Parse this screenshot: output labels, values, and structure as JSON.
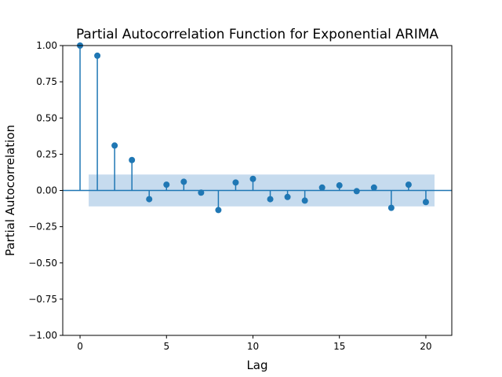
{
  "chart_data": {
    "type": "scatter",
    "subtype": "stem",
    "title": "Partial Autocorrelation Function for Exponential ARIMA",
    "xlabel": "Lag",
    "ylabel": "Partial Autocorrelation",
    "xlim": [
      -1,
      21.5
    ],
    "ylim": [
      -1.0,
      1.0
    ],
    "xticks": [
      0,
      5,
      10,
      15,
      20
    ],
    "xtick_labels": [
      "0",
      "5",
      "10",
      "15",
      "20"
    ],
    "yticks": [
      1.0,
      0.75,
      0.5,
      0.25,
      0.0,
      -0.25,
      -0.5,
      -0.75,
      -1.0
    ],
    "ytick_labels": [
      "1.00",
      "0.75",
      "0.50",
      "0.25",
      "0.00",
      "−0.25",
      "−0.50",
      "−0.75",
      "−1.00"
    ],
    "grid": false,
    "legend": "none",
    "colors": {
      "stem": "#1f77b4",
      "baseline": "#1f77b4",
      "confidence_band": "#c6dbee"
    },
    "series": [
      {
        "lags": [
          0,
          1,
          2,
          3,
          4,
          5,
          6,
          7,
          8,
          9,
          10,
          11,
          12,
          13,
          14,
          15,
          16,
          17,
          18,
          19,
          20
        ],
        "values": [
          1.0,
          0.93,
          0.31,
          0.21,
          -0.06,
          0.04,
          0.06,
          -0.015,
          -0.135,
          0.055,
          0.08,
          -0.06,
          -0.045,
          -0.07,
          0.02,
          0.035,
          -0.005,
          0.02,
          -0.12,
          0.04,
          -0.08
        ]
      }
    ],
    "confidence_band": {
      "x_range": [
        0.5,
        20.5
      ],
      "lower": -0.11,
      "upper": 0.11
    }
  }
}
